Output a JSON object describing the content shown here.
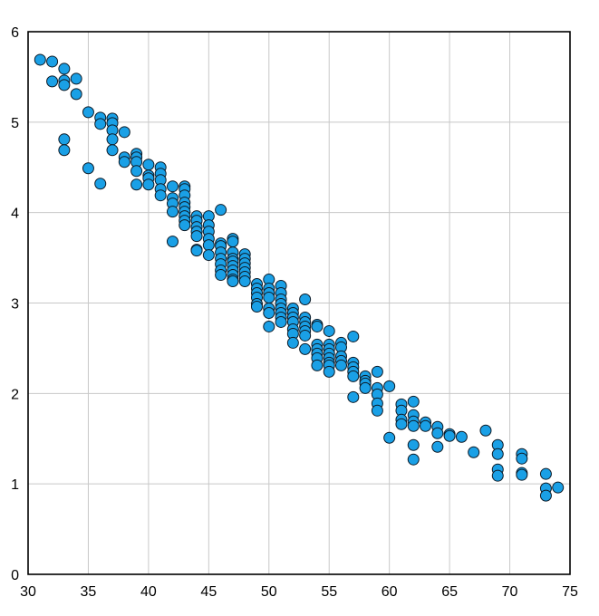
{
  "chart_data": {
    "type": "scatter",
    "title": "",
    "xlabel": "",
    "ylabel": "",
    "xlim": [
      30,
      75
    ],
    "ylim": [
      0,
      6
    ],
    "x_ticks": [
      "30",
      "35",
      "40",
      "45",
      "50",
      "55",
      "60",
      "65",
      "70",
      "75"
    ],
    "y_ticks": [
      "0",
      "1",
      "2",
      "3",
      "4",
      "5",
      "6"
    ],
    "grid": true,
    "legend": "none",
    "marker_color": "#1aa0e6",
    "marker_edge_color": "#0d1a26",
    "series": [
      {
        "points": [
          [
            31,
            5.69
          ],
          [
            32,
            5.67
          ],
          [
            32,
            5.45
          ],
          [
            33,
            5.59
          ],
          [
            33,
            5.46
          ],
          [
            33,
            5.41
          ],
          [
            34,
            5.48
          ],
          [
            34,
            5.31
          ],
          [
            33,
            4.81
          ],
          [
            33,
            4.69
          ],
          [
            35,
            5.11
          ],
          [
            35,
            4.49
          ],
          [
            36,
            5.05
          ],
          [
            36,
            4.98
          ],
          [
            36,
            4.32
          ],
          [
            37,
            5.04
          ],
          [
            37,
            4.99
          ],
          [
            37,
            4.91
          ],
          [
            37,
            4.81
          ],
          [
            37,
            4.69
          ],
          [
            38,
            4.89
          ],
          [
            38,
            4.61
          ],
          [
            38,
            4.56
          ],
          [
            39,
            4.65
          ],
          [
            39,
            4.61
          ],
          [
            39,
            4.56
          ],
          [
            39,
            4.46
          ],
          [
            39,
            4.31
          ],
          [
            40,
            4.53
          ],
          [
            40,
            4.41
          ],
          [
            40,
            4.38
          ],
          [
            40,
            4.31
          ],
          [
            41,
            4.5
          ],
          [
            41,
            4.43
          ],
          [
            41,
            4.36
          ],
          [
            41,
            4.26
          ],
          [
            41,
            4.19
          ],
          [
            42,
            4.29
          ],
          [
            42,
            4.16
          ],
          [
            42,
            4.1
          ],
          [
            42,
            4.01
          ],
          [
            42,
            3.68
          ],
          [
            43,
            4.29
          ],
          [
            43,
            4.26
          ],
          [
            43,
            4.19
          ],
          [
            43,
            4.11
          ],
          [
            43,
            4.06
          ],
          [
            43,
            4.01
          ],
          [
            43,
            3.96
          ],
          [
            43,
            3.91
          ],
          [
            43,
            3.86
          ],
          [
            44,
            3.96
          ],
          [
            44,
            3.91
          ],
          [
            44,
            3.84
          ],
          [
            44,
            3.79
          ],
          [
            44,
            3.74
          ],
          [
            44,
            3.59
          ],
          [
            44,
            3.58
          ],
          [
            45,
            3.96
          ],
          [
            45,
            3.86
          ],
          [
            45,
            3.79
          ],
          [
            45,
            3.71
          ],
          [
            45,
            3.64
          ],
          [
            45,
            3.53
          ],
          [
            46,
            4.03
          ],
          [
            46,
            3.66
          ],
          [
            46,
            3.63
          ],
          [
            46,
            3.56
          ],
          [
            46,
            3.49
          ],
          [
            46,
            3.43
          ],
          [
            46,
            3.36
          ],
          [
            46,
            3.31
          ],
          [
            47,
            3.71
          ],
          [
            47,
            3.68
          ],
          [
            47,
            3.56
          ],
          [
            47,
            3.49
          ],
          [
            47,
            3.46
          ],
          [
            47,
            3.41
          ],
          [
            47,
            3.36
          ],
          [
            47,
            3.31
          ],
          [
            47,
            3.26
          ],
          [
            47,
            3.24
          ],
          [
            48,
            3.54
          ],
          [
            48,
            3.49
          ],
          [
            48,
            3.44
          ],
          [
            48,
            3.39
          ],
          [
            48,
            3.34
          ],
          [
            48,
            3.29
          ],
          [
            48,
            3.24
          ],
          [
            49,
            3.21
          ],
          [
            49,
            3.16
          ],
          [
            49,
            3.11
          ],
          [
            49,
            3.06
          ],
          [
            49,
            2.99
          ],
          [
            49,
            2.96
          ],
          [
            50,
            3.26
          ],
          [
            50,
            3.16
          ],
          [
            50,
            3.11
          ],
          [
            50,
            3.06
          ],
          [
            50,
            2.94
          ],
          [
            50,
            2.89
          ],
          [
            50,
            2.74
          ],
          [
            51,
            3.19
          ],
          [
            51,
            3.11
          ],
          [
            51,
            3.04
          ],
          [
            51,
            2.99
          ],
          [
            51,
            2.94
          ],
          [
            51,
            2.89
          ],
          [
            51,
            2.84
          ],
          [
            51,
            2.79
          ],
          [
            52,
            2.94
          ],
          [
            52,
            2.89
          ],
          [
            52,
            2.84
          ],
          [
            52,
            2.79
          ],
          [
            52,
            2.71
          ],
          [
            52,
            2.66
          ],
          [
            52,
            2.56
          ],
          [
            53,
            3.04
          ],
          [
            53,
            2.84
          ],
          [
            53,
            2.79
          ],
          [
            53,
            2.74
          ],
          [
            53,
            2.69
          ],
          [
            53,
            2.64
          ],
          [
            53,
            2.49
          ],
          [
            54,
            2.76
          ],
          [
            54,
            2.74
          ],
          [
            54,
            2.54
          ],
          [
            54,
            2.49
          ],
          [
            54,
            2.44
          ],
          [
            54,
            2.39
          ],
          [
            54,
            2.31
          ],
          [
            55,
            2.69
          ],
          [
            55,
            2.54
          ],
          [
            55,
            2.49
          ],
          [
            55,
            2.44
          ],
          [
            55,
            2.39
          ],
          [
            55,
            2.34
          ],
          [
            55,
            2.31
          ],
          [
            55,
            2.24
          ],
          [
            56,
            2.56
          ],
          [
            56,
            2.51
          ],
          [
            56,
            2.41
          ],
          [
            56,
            2.36
          ],
          [
            56,
            2.31
          ],
          [
            57,
            2.63
          ],
          [
            57,
            2.34
          ],
          [
            57,
            2.29
          ],
          [
            57,
            2.24
          ],
          [
            57,
            2.19
          ],
          [
            57,
            1.96
          ],
          [
            58,
            2.19
          ],
          [
            58,
            2.14
          ],
          [
            58,
            2.11
          ],
          [
            58,
            2.06
          ],
          [
            59,
            2.24
          ],
          [
            59,
            2.06
          ],
          [
            59,
            1.99
          ],
          [
            59,
            1.89
          ],
          [
            59,
            1.81
          ],
          [
            60,
            2.08
          ],
          [
            60,
            1.51
          ],
          [
            61,
            1.88
          ],
          [
            61,
            1.81
          ],
          [
            61,
            1.71
          ],
          [
            61,
            1.66
          ],
          [
            62,
            1.91
          ],
          [
            62,
            1.76
          ],
          [
            62,
            1.69
          ],
          [
            62,
            1.64
          ],
          [
            62,
            1.43
          ],
          [
            62,
            1.27
          ],
          [
            63,
            1.68
          ],
          [
            63,
            1.64
          ],
          [
            64,
            1.63
          ],
          [
            64,
            1.56
          ],
          [
            64,
            1.41
          ],
          [
            65,
            1.55
          ],
          [
            65,
            1.53
          ],
          [
            66,
            1.52
          ],
          [
            67,
            1.35
          ],
          [
            68,
            1.59
          ],
          [
            69,
            1.43
          ],
          [
            69,
            1.33
          ],
          [
            69,
            1.16
          ],
          [
            69,
            1.09
          ],
          [
            71,
            1.33
          ],
          [
            71,
            1.28
          ],
          [
            71,
            1.12
          ],
          [
            71,
            1.1
          ],
          [
            73,
            1.11
          ],
          [
            73,
            0.95
          ],
          [
            73,
            0.87
          ],
          [
            74,
            0.96
          ]
        ]
      }
    ]
  }
}
